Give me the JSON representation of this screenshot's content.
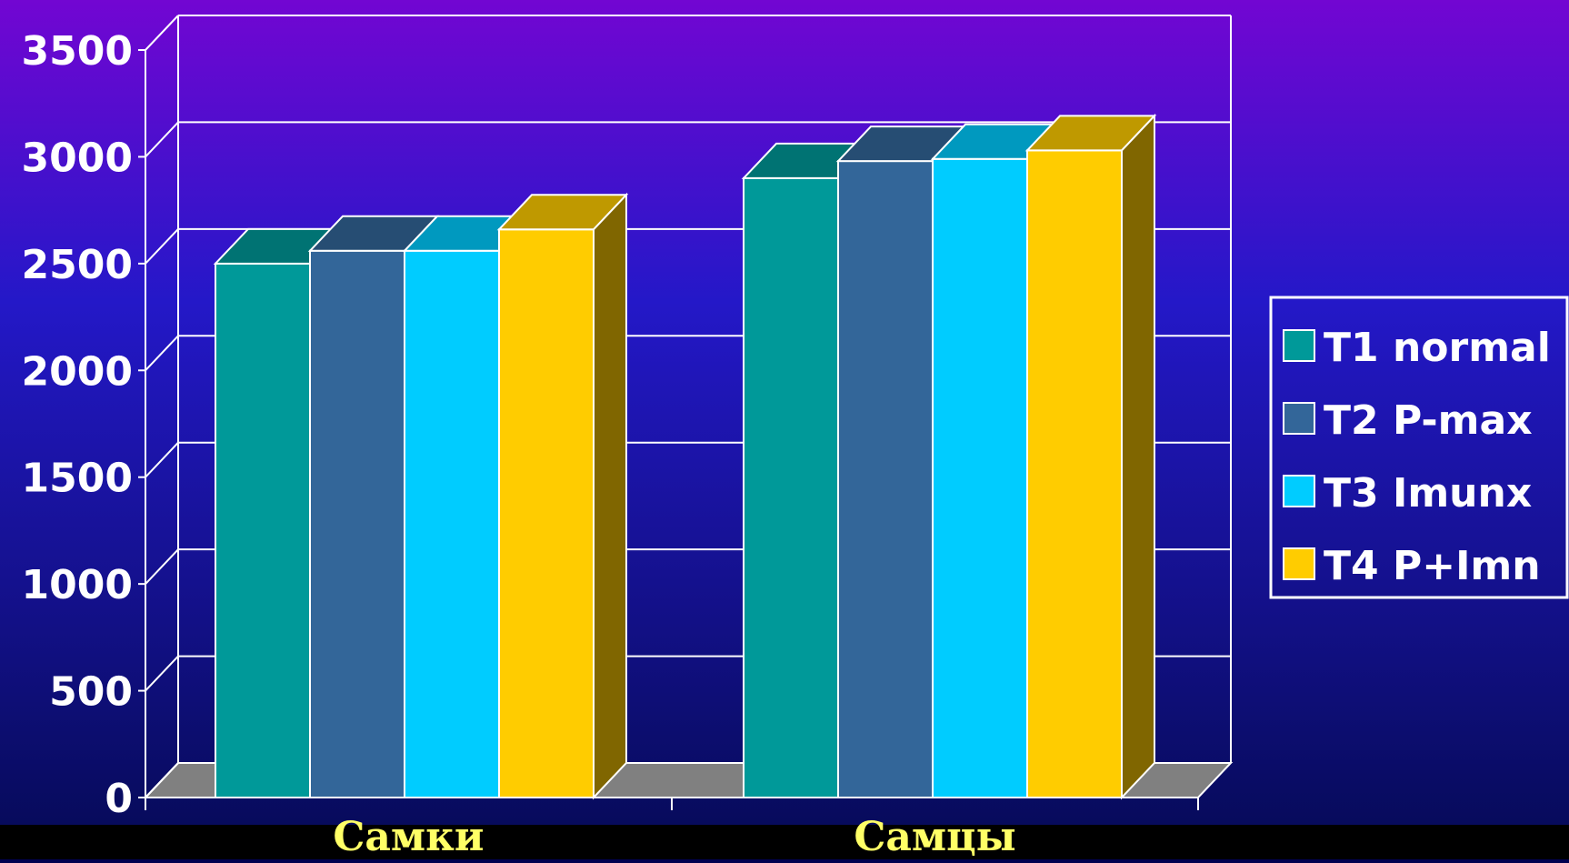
{
  "chart_data": {
    "type": "bar",
    "title": "",
    "xlabel": "",
    "ylabel": "",
    "categories": [
      "Самки",
      "Самцы"
    ],
    "series": [
      {
        "name": "T1 normal",
        "values": [
          2500,
          2900
        ],
        "color": "#009999"
      },
      {
        "name": "T2 P-max",
        "values": [
          2560,
          2980
        ],
        "color": "#336699"
      },
      {
        "name": "T3 Imunx",
        "values": [
          2560,
          2990
        ],
        "color": "#00CCFF"
      },
      {
        "name": "T4 P+Imn",
        "values": [
          2660,
          3030
        ],
        "color": "#FFCC00"
      }
    ],
    "yticks": [
      0,
      500,
      1000,
      1500,
      2000,
      2500,
      3000,
      3500
    ],
    "ylim": [
      0,
      3500
    ],
    "grid": true,
    "legend": "right",
    "style": "3d-column",
    "colors": {
      "background_top": "#7206d2",
      "background_bottom": "#050a55",
      "category_label": "#FFFF66",
      "axis_text": "#FFFFFF",
      "floor": "#808080"
    }
  }
}
